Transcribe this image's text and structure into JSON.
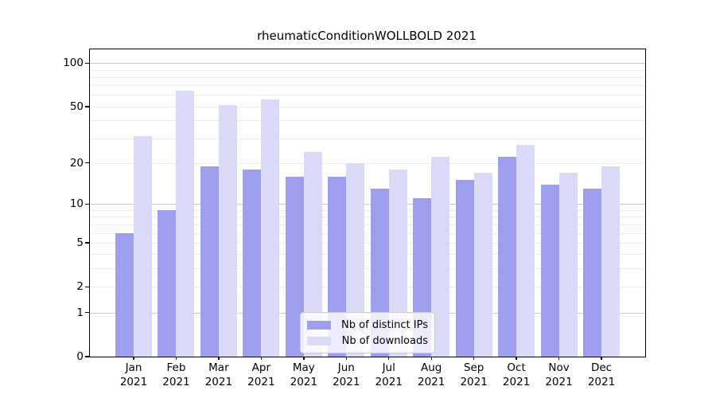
{
  "chart_data": {
    "type": "bar",
    "title": "rheumaticConditionWOLLBOLD 2021",
    "categories": [
      "Jan",
      "Feb",
      "Mar",
      "Apr",
      "May",
      "Jun",
      "Jul",
      "Aug",
      "Sep",
      "Oct",
      "Nov",
      "Dec"
    ],
    "year_label": "2021",
    "series": [
      {
        "name": "Nb of distinct IPs",
        "color": "#9e9eee",
        "values": [
          6,
          9,
          19,
          18,
          16,
          16,
          13,
          11,
          15,
          22,
          14,
          13
        ]
      },
      {
        "name": "Nb of downloads",
        "color": "#dadaf7",
        "values": [
          31,
          64,
          51,
          56,
          24,
          20,
          18,
          22,
          17,
          27,
          17,
          19
        ]
      }
    ],
    "xlabel": "",
    "ylabel": "",
    "yscale": "log1p",
    "yticks": [
      0,
      1,
      2,
      5,
      10,
      20,
      50,
      100
    ],
    "ylim": [
      0,
      124
    ],
    "grid": true,
    "legend_position": "lower center",
    "colors": {
      "major_grid": "#c9c9c9",
      "minor_grid": "#ececec",
      "spine": "#000000",
      "legend_border": "#cccccc"
    }
  }
}
